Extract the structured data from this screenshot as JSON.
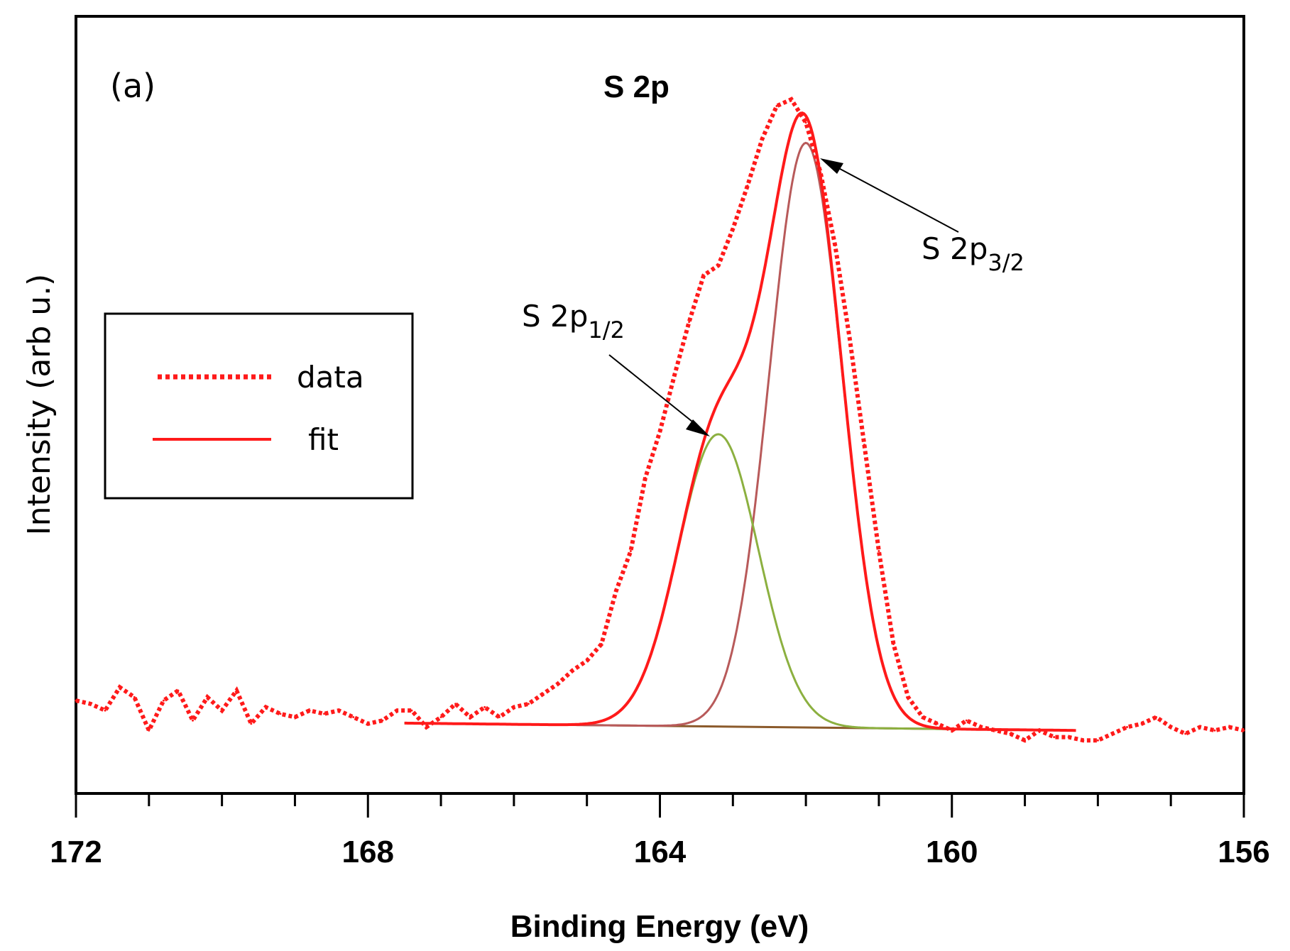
{
  "chart_data": {
    "type": "line",
    "title": "S 2p",
    "panel_label": "(a)",
    "xlabel": "Binding Energy (eV)",
    "ylabel": "Intensity (arb u.)",
    "xlim": [
      172,
      156
    ],
    "x_reversed": true,
    "xticks": [
      172,
      168,
      164,
      160,
      156
    ],
    "xtick_labels": [
      "172",
      "168",
      "164",
      "160",
      "156"
    ],
    "xminor_step": 1,
    "ylim": [
      0,
      100
    ],
    "legend": {
      "position": "center-left",
      "entries": [
        {
          "label": "data",
          "style": "dotted",
          "color": "#ff1a1a"
        },
        {
          "label": "fit",
          "style": "solid",
          "color": "#ff1a1a"
        }
      ]
    },
    "colors": {
      "data": "#ff1a1a",
      "fit": "#ff1a1a",
      "s2p32": "#b85a5a",
      "s2p12": "#8cb040",
      "background": "#8b5a2b"
    },
    "annotations": [
      {
        "text_main": "S 2p",
        "text_sub": "3/2",
        "x": 162.0
      },
      {
        "text_main": "S 2p",
        "text_sub": "1/2",
        "x": 163.2
      }
    ],
    "background_line": {
      "x": [
        167.5,
        158.3
      ],
      "y": [
        6.1,
        5.0
      ]
    },
    "peaks": [
      {
        "name": "S 2p3/2",
        "center": 162.0,
        "height": 88.0,
        "sigma": 0.5
      },
      {
        "name": "S 2p1/2",
        "center": 163.2,
        "height": 44.0,
        "sigma": 0.55
      }
    ],
    "fit_range": [
      167.5,
      158.3
    ],
    "series": [
      {
        "name": "data",
        "x": [
          172.0,
          171.8,
          171.6,
          171.4,
          171.2,
          171.0,
          170.8,
          170.6,
          170.4,
          170.2,
          170.0,
          169.8,
          169.6,
          169.4,
          169.2,
          169.0,
          168.8,
          168.6,
          168.4,
          168.2,
          168.0,
          167.8,
          167.6,
          167.4,
          167.2,
          167.0,
          166.8,
          166.6,
          166.4,
          166.2,
          166.0,
          165.8,
          165.6,
          165.4,
          165.2,
          165.0,
          164.8,
          164.6,
          164.4,
          164.2,
          164.0,
          163.8,
          163.6,
          163.4,
          163.2,
          163.0,
          162.8,
          162.6,
          162.4,
          162.2,
          162.0,
          161.8,
          161.6,
          161.4,
          161.2,
          161.0,
          160.8,
          160.6,
          160.4,
          160.2,
          160.0,
          159.8,
          159.6,
          159.4,
          159.2,
          159.0,
          158.8,
          158.6,
          158.4,
          158.2,
          158.0,
          157.8,
          157.6,
          157.4,
          157.2,
          157.0,
          156.8,
          156.6,
          156.4,
          156.2,
          156.0
        ],
        "y": [
          9.5,
          9.0,
          8.0,
          11.5,
          10.0,
          5.0,
          9.5,
          11.0,
          6.5,
          10.0,
          8.0,
          11.0,
          6.0,
          8.5,
          7.5,
          7.0,
          8.0,
          7.5,
          8.0,
          7.0,
          6.0,
          6.5,
          8.0,
          8.0,
          5.5,
          7.0,
          9.0,
          7.0,
          8.5,
          7.0,
          8.5,
          9.0,
          10.5,
          12.0,
          14.0,
          15.5,
          18.0,
          26.0,
          32.0,
          43.0,
          50.0,
          58.5,
          66.5,
          73.5,
          75.0,
          80.5,
          87.0,
          94.0,
          99.0,
          100.0,
          96.5,
          89.0,
          78.0,
          64.0,
          48.0,
          32.0,
          18.0,
          10.0,
          7.0,
          6.0,
          5.0,
          6.5,
          5.5,
          5.0,
          4.5,
          3.5,
          5.0,
          4.0,
          4.0,
          3.5,
          3.5,
          4.5,
          5.5,
          6.0,
          7.0,
          5.5,
          4.5,
          5.5,
          5.0,
          5.5,
          5.0
        ]
      }
    ]
  }
}
